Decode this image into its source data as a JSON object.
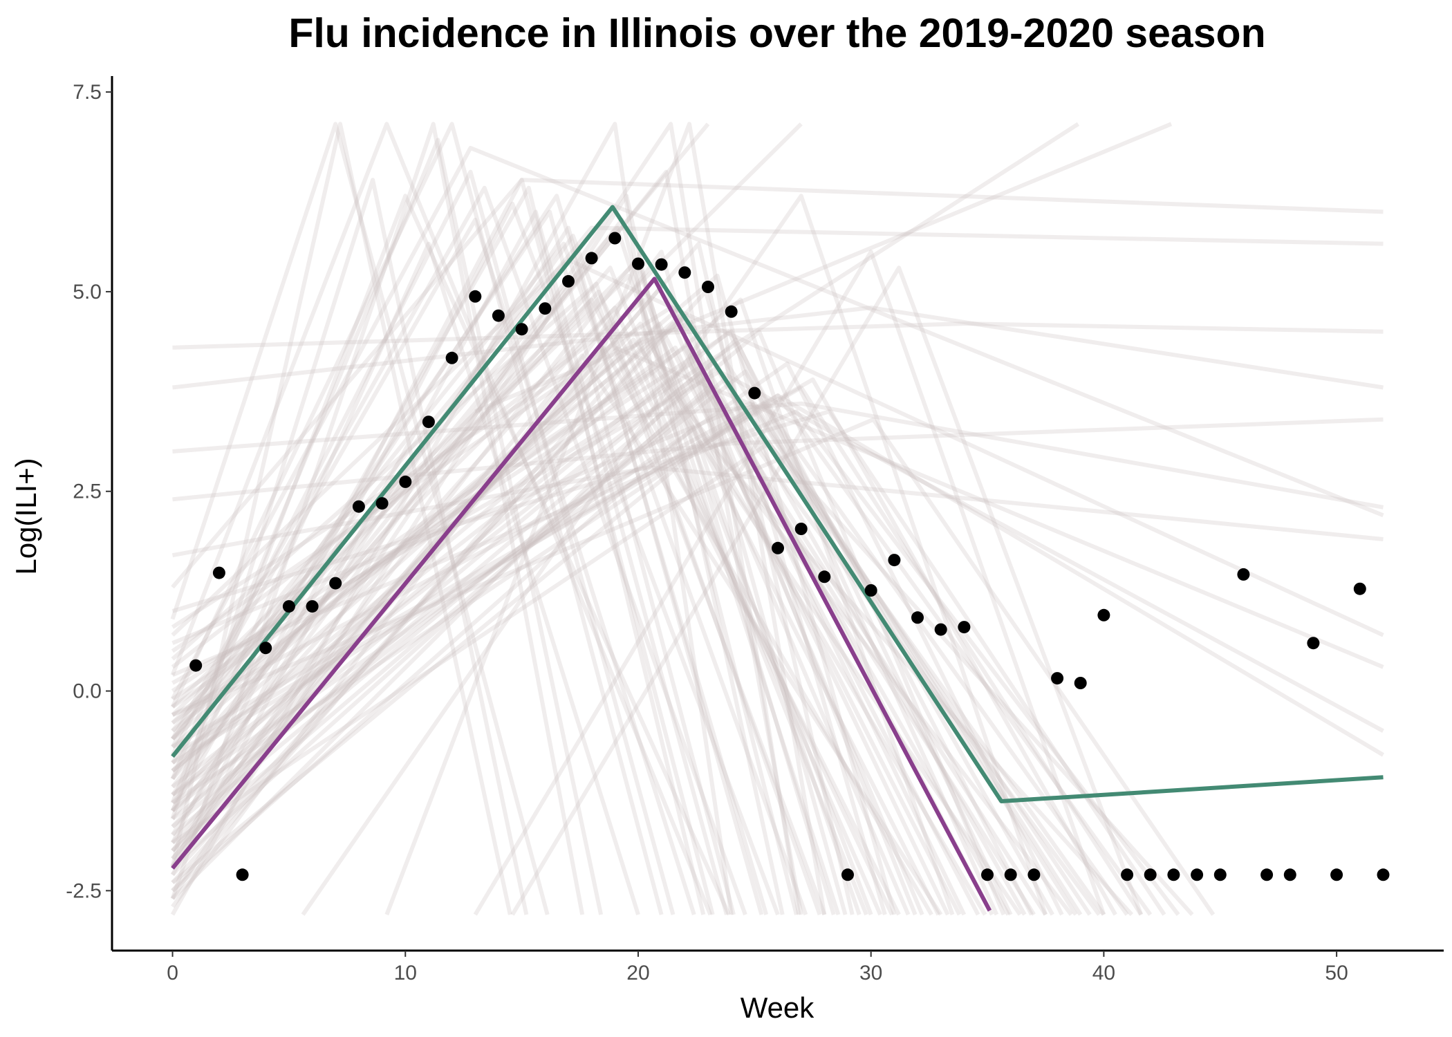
{
  "chart_data": {
    "type": "line",
    "title": "Flu incidence in Illinois over the 2019-2020 season",
    "xlabel": "Week",
    "ylabel": "Log(ILI+)",
    "xlim": [
      -2.6,
      54.6
    ],
    "ylim": [
      -3.25,
      7.7
    ],
    "x_ticks": [
      0,
      10,
      20,
      30,
      40,
      50
    ],
    "x_tick_labels": [
      "0",
      "10",
      "20",
      "30",
      "40",
      "50"
    ],
    "y_ticks": [
      -2.5,
      0,
      2.5,
      5,
      7.5
    ],
    "y_tick_labels": [
      "-2.5",
      "0.0",
      "2.5",
      "5.0",
      "7.5"
    ],
    "grid": false,
    "legend": "none",
    "colors": {
      "observed": "#000000",
      "fit_green": "#438a73",
      "fit_purple": "#893f8c",
      "samples": "#c9bec0"
    },
    "observed_points": {
      "x": [
        1,
        2,
        3,
        4,
        5,
        6,
        7,
        8,
        9,
        10,
        11,
        12,
        13,
        14,
        15,
        16,
        17,
        18,
        19,
        20,
        21,
        22,
        23,
        24,
        25,
        26,
        27,
        28,
        29,
        30,
        31,
        32,
        33,
        34,
        35,
        36,
        37,
        38,
        39,
        40,
        41,
        42,
        43,
        44,
        45,
        46,
        47,
        48,
        49,
        50,
        51,
        52
      ],
      "y": [
        0.32,
        1.48,
        -2.3,
        0.54,
        1.06,
        1.06,
        1.35,
        2.31,
        2.35,
        2.62,
        3.37,
        4.17,
        4.94,
        4.7,
        4.53,
        4.79,
        5.13,
        5.42,
        5.67,
        5.35,
        5.34,
        5.24,
        5.06,
        4.75,
        3.73,
        1.79,
        2.03,
        1.43,
        -2.3,
        1.26,
        1.64,
        0.92,
        0.77,
        0.8,
        -2.3,
        -2.3,
        -2.3,
        0.16,
        0.1,
        0.95,
        -2.3,
        -2.3,
        -2.3,
        -2.3,
        -2.3,
        1.46,
        -2.3,
        -2.3,
        0.6,
        -2.3,
        1.28,
        -2.3
      ]
    },
    "series": [
      {
        "x": [
          0,
          18.9,
          35.6,
          52
        ],
        "y": [
          -0.82,
          6.06,
          -1.38,
          -1.08
        ]
      },
      {
        "x": [
          0,
          20.7,
          35.1
        ],
        "y": [
          -2.22,
          5.16,
          -2.75
        ]
      }
    ],
    "sample_trajectories": [
      {
        "x": [
          0,
          7.2,
          14.5
        ],
        "y": [
          -2.2,
          7.1,
          -2.8
        ]
      },
      {
        "x": [
          0,
          8.6,
          15.2
        ],
        "y": [
          -1.6,
          6.4,
          -2.8
        ]
      },
      {
        "x": [
          0,
          11.4,
          18.4
        ],
        "y": [
          -1.1,
          6.9,
          -2.8
        ]
      },
      {
        "x": [
          0,
          12.8,
          21.5
        ],
        "y": [
          -0.8,
          6.5,
          -2.8
        ]
      },
      {
        "x": [
          0,
          11.2,
          17.6
        ],
        "y": [
          -2.6,
          7.1,
          -2.8
        ]
      },
      {
        "x": [
          0,
          9.2,
          23.1
        ],
        "y": [
          0.2,
          7.1,
          -2.8
        ]
      },
      {
        "x": [
          0,
          15.3,
          22.8
        ],
        "y": [
          -1.5,
          6.3,
          -2.8
        ]
      },
      {
        "x": [
          0,
          16.2,
          24.1
        ],
        "y": [
          -0.9,
          6.0,
          -2.8
        ]
      },
      {
        "x": [
          0,
          17.0,
          25.3
        ],
        "y": [
          -1.8,
          5.8,
          -2.8
        ]
      },
      {
        "x": [
          0,
          19.5,
          26.2
        ],
        "y": [
          -2.6,
          6.2,
          -2.8
        ]
      },
      {
        "x": [
          0,
          21.2,
          27.0
        ],
        "y": [
          -1.2,
          6.5,
          -2.8
        ]
      },
      {
        "x": [
          0,
          20.0,
          28.4
        ],
        "y": [
          -0.4,
          5.4,
          -2.8
        ]
      },
      {
        "x": [
          0,
          18.2,
          27.8
        ],
        "y": [
          0.4,
          5.1,
          -2.8
        ]
      },
      {
        "x": [
          0,
          22.6,
          29.2
        ],
        "y": [
          -2.0,
          5.6,
          -2.8
        ]
      },
      {
        "x": [
          0,
          19.0,
          30.4
        ],
        "y": [
          -1.4,
          4.8,
          -2.8
        ]
      },
      {
        "x": [
          0,
          23.4,
          31.0
        ],
        "y": [
          -0.6,
          5.2,
          -2.8
        ]
      },
      {
        "x": [
          0,
          21.5,
          32.2
        ],
        "y": [
          -2.4,
          4.6,
          -2.8
        ]
      },
      {
        "x": [
          0,
          24.4,
          33.5
        ],
        "y": [
          -1.0,
          4.9,
          -2.8
        ]
      },
      {
        "x": [
          0,
          22.0,
          34.6
        ],
        "y": [
          0.0,
          4.3,
          -2.8
        ]
      },
      {
        "x": [
          0,
          25.2,
          35.7
        ],
        "y": [
          -1.7,
          4.5,
          -2.8
        ]
      },
      {
        "x": [
          0,
          20.6,
          36.4
        ],
        "y": [
          -0.2,
          4.0,
          -2.8
        ]
      },
      {
        "x": [
          0,
          23.0,
          37.5
        ],
        "y": [
          -2.2,
          3.8,
          -2.8
        ]
      },
      {
        "x": [
          0,
          26.4,
          38.2
        ],
        "y": [
          -1.3,
          4.1,
          -2.8
        ]
      },
      {
        "x": [
          0,
          24.8,
          39.4
        ],
        "y": [
          0.6,
          3.6,
          -2.8
        ]
      },
      {
        "x": [
          0,
          27.5,
          40.5
        ],
        "y": [
          -0.7,
          3.9,
          -2.8
        ]
      },
      {
        "x": [
          0,
          22.4,
          41.2
        ],
        "y": [
          -2.5,
          3.3,
          -2.8
        ]
      },
      {
        "x": [
          0,
          28.2,
          42.6
        ],
        "y": [
          1.0,
          3.5,
          -2.8
        ]
      },
      {
        "x": [
          0,
          25.6,
          43.8
        ],
        "y": [
          -1.9,
          3.1,
          -2.8
        ]
      },
      {
        "x": [
          0,
          30.1,
          44.7
        ],
        "y": [
          -0.3,
          3.4,
          -2.8
        ]
      },
      {
        "x": [
          0,
          19.8,
          38.6
        ],
        "y": [
          -1.5,
          4.4,
          -2.8
        ]
      },
      {
        "x": [
          0,
          21.8,
          35.2
        ],
        "y": [
          -0.9,
          4.7,
          -2.8
        ]
      },
      {
        "x": [
          0,
          17.6,
          33.0
        ],
        "y": [
          -2.1,
          4.2,
          -2.8
        ]
      },
      {
        "x": [
          0,
          20.3,
          31.6
        ],
        "y": [
          0.3,
          4.9,
          -2.8
        ]
      },
      {
        "x": [
          0,
          18.8,
          29.8
        ],
        "y": [
          -1.1,
          5.3,
          -2.8
        ]
      },
      {
        "x": [
          0,
          22.9,
          30.6
        ],
        "y": [
          -2.3,
          5.0,
          -2.8
        ]
      },
      {
        "x": [
          0,
          16.8,
          27.2
        ],
        "y": [
          -0.5,
          5.6,
          -2.8
        ]
      },
      {
        "x": [
          0,
          19.3,
          26.8
        ],
        "y": [
          -1.6,
          5.9,
          -2.8
        ]
      },
      {
        "x": [
          0,
          21.0,
          28.9
        ],
        "y": [
          -2.7,
          5.5,
          -2.8
        ]
      },
      {
        "x": [
          0,
          24.0,
          36.9
        ],
        "y": [
          -0.1,
          4.5,
          -2.8
        ]
      },
      {
        "x": [
          0,
          26.0,
          42.0
        ],
        "y": [
          -1.4,
          3.7,
          -2.8
        ]
      },
      {
        "x": [
          0,
          23.7,
          40.0
        ],
        "y": [
          -2.0,
          3.9,
          -2.8
        ]
      },
      {
        "x": [
          0,
          20.9,
          33.8
        ],
        "y": [
          -0.7,
          4.6,
          -2.8
        ]
      },
      {
        "x": [
          0,
          18.5,
          32.6
        ],
        "y": [
          -1.9,
          4.3,
          -2.8
        ]
      },
      {
        "x": [
          0,
          22.2,
          37.0
        ],
        "y": [
          -1.0,
          4.1,
          -2.8
        ]
      },
      {
        "x": [
          0,
          25.0,
          39.0
        ],
        "y": [
          -2.4,
          3.6,
          -2.8
        ]
      },
      {
        "x": [
          0,
          19.6,
          30.0
        ],
        "y": [
          -0.3,
          5.2,
          -2.8
        ]
      },
      {
        "x": [
          0,
          17.2,
          28.0
        ],
        "y": [
          -1.3,
          5.7,
          -2.8
        ]
      },
      {
        "x": [
          0,
          14.6,
          26.0
        ],
        "y": [
          -2.2,
          6.1,
          -2.8
        ]
      },
      {
        "x": [
          0,
          13.4,
          24.6
        ],
        "y": [
          -0.6,
          6.3,
          -2.8
        ]
      },
      {
        "x": [
          0,
          21.4,
          34.0
        ],
        "y": [
          0.8,
          4.8,
          -2.8
        ]
      },
      {
        "x": [
          0,
          23.6,
          38.8
        ],
        "y": [
          -1.2,
          4.2,
          -2.8
        ]
      },
      {
        "x": [
          0,
          27.0,
          41.6
        ],
        "y": [
          -0.8,
          3.8,
          -2.8
        ]
      },
      {
        "x": [
          0,
          24.2,
          36.0
        ],
        "y": [
          -2.6,
          4.4,
          -2.8
        ]
      },
      {
        "x": [
          0,
          20.1,
          32.9
        ],
        "y": [
          -1.7,
          4.6,
          -2.8
        ]
      },
      {
        "x": [
          0,
          18.0,
          31.2
        ],
        "y": [
          -0.2,
          4.9,
          -2.8
        ]
      },
      {
        "x": [
          0,
          22.7,
          35.9
        ],
        "y": [
          -1.5,
          4.0,
          -2.8
        ]
      },
      {
        "x": [
          0,
          19.9,
          29.5
        ],
        "y": [
          -2.0,
          5.4,
          -2.8
        ]
      },
      {
        "x": [
          0,
          21.6,
          33.3
        ],
        "y": [
          -0.4,
          4.3,
          -2.8
        ]
      },
      {
        "x": [
          0,
          16.5,
          25.5
        ],
        "y": [
          -1.1,
          6.2,
          -2.8
        ]
      },
      {
        "x": [
          0,
          15.6,
          23.8
        ],
        "y": [
          -2.3,
          6.0,
          -2.8
        ]
      },
      {
        "x": [
          0,
          26.8,
          43.2
        ],
        "y": [
          0.2,
          3.5,
          -2.8
        ]
      },
      {
        "x": [
          0,
          23.2,
          39.8
        ],
        "y": [
          -1.8,
          3.8,
          -2.8
        ]
      },
      {
        "x": [
          0,
          25.4,
          41.0
        ],
        "y": [
          -0.9,
          3.6,
          -2.8
        ]
      },
      {
        "x": [
          0,
          20.4,
          34.9
        ],
        "y": [
          -2.5,
          4.4,
          -2.8
        ]
      },
      {
        "x": [
          0,
          18.3,
          30.9
        ],
        "y": [
          -1.0,
          5.0,
          -2.8
        ]
      },
      {
        "x": [
          0,
          22.1,
          36.6
        ],
        "y": [
          -0.5,
          4.7,
          -2.8
        ]
      },
      {
        "x": [
          0,
          24.6,
          37.8
        ],
        "y": [
          -1.6,
          4.0,
          -2.8
        ]
      },
      {
        "x": [
          0,
          21.1,
          31.9
        ],
        "y": [
          -2.1,
          5.1,
          -2.8
        ]
      },
      {
        "x": [
          0,
          19.1,
          28.6
        ],
        "y": [
          -0.6,
          5.8,
          -2.8
        ]
      },
      {
        "x": [
          0,
          23.9,
          35.4
        ],
        "y": [
          -1.3,
          4.5,
          -2.8
        ]
      },
      {
        "x": [
          0,
          7.0,
          16.1
        ],
        "y": [
          0.9,
          7.1,
          -2.8
        ]
      },
      {
        "x": [
          0,
          12.0,
          21.0
        ],
        "y": [
          -0.2,
          7.1,
          -2.8
        ]
      },
      {
        "x": [
          0,
          10.0,
          23.9
        ],
        "y": [
          -1.4,
          6.2,
          -2.8
        ]
      },
      {
        "x": [
          0,
          19.0,
          24.0
        ],
        "y": [
          -2.8,
          7.1,
          -2.8
        ]
      },
      {
        "x": [
          0,
          21.4,
          26.9
        ],
        "y": [
          -2.2,
          7.1,
          -2.8
        ]
      },
      {
        "x": [
          9.2,
          22.2,
          28.0
        ],
        "y": [
          -2.8,
          7.1,
          -2.8
        ]
      },
      {
        "x": [
          5.6,
          27.0,
          37.5
        ],
        "y": [
          -2.8,
          6.2,
          -2.8
        ]
      },
      {
        "x": [
          13.0,
          30.0,
          40.0
        ],
        "y": [
          -2.8,
          5.5,
          -2.8
        ]
      },
      {
        "x": [
          14.6,
          31.2,
          41.6
        ],
        "y": [
          -2.8,
          5.3,
          -2.8
        ]
      },
      {
        "x": [
          0,
          34.0,
          52
        ],
        "y": [
          4.3,
          4.6,
          4.5
        ]
      },
      {
        "x": [
          0,
          30.0,
          52
        ],
        "y": [
          3.8,
          4.8,
          3.8
        ]
      },
      {
        "x": [
          0,
          27.0,
          52
        ],
        "y": [
          3.0,
          3.6,
          2.3
        ]
      },
      {
        "x": [
          0,
          24.0,
          52
        ],
        "y": [
          2.4,
          3.1,
          3.4
        ]
      },
      {
        "x": [
          0,
          20.5,
          52
        ],
        "y": [
          1.7,
          2.8,
          1.9
        ]
      },
      {
        "x": [
          0,
          19.0,
          52
        ],
        "y": [
          0.5,
          4.3,
          0.3
        ]
      },
      {
        "x": [
          0,
          23.5,
          52
        ],
        "y": [
          0.1,
          4.0,
          -0.5
        ]
      },
      {
        "x": [
          0,
          26.0,
          52
        ],
        "y": [
          -0.3,
          3.7,
          -0.8
        ]
      },
      {
        "x": [
          0,
          17.0,
          52
        ],
        "y": [
          0.7,
          5.4,
          0.7
        ]
      },
      {
        "x": [
          0,
          12.8,
          52
        ],
        "y": [
          -0.1,
          6.8,
          2.2
        ]
      },
      {
        "x": [
          0,
          15.0,
          52
        ],
        "y": [
          1.3,
          6.4,
          6.0
        ]
      },
      {
        "x": [
          0,
          18.0,
          52
        ],
        "y": [
          -0.6,
          5.8,
          5.6
        ]
      },
      {
        "x": [
          16.5,
          38.9
        ],
        "y": [
          2.9,
          7.1
        ]
      },
      {
        "x": [
          13.0,
          42.9
        ],
        "y": [
          3.5,
          7.1
        ]
      },
      {
        "x": [
          10.0,
          27.0
        ],
        "y": [
          2.2,
          7.1
        ]
      },
      {
        "x": [
          7.0,
          23.0
        ],
        "y": [
          1.5,
          7.1
        ]
      },
      {
        "x": [
          0,
          15.0,
          23.2
        ],
        "y": [
          -1.9,
          6.4,
          -2.8
        ]
      },
      {
        "x": [
          0,
          13.0,
          22.4
        ],
        "y": [
          -0.7,
          5.9,
          -2.8
        ]
      },
      {
        "x": [
          0,
          11.0,
          20.0
        ],
        "y": [
          -1.5,
          5.6,
          -2.8
        ]
      }
    ]
  }
}
